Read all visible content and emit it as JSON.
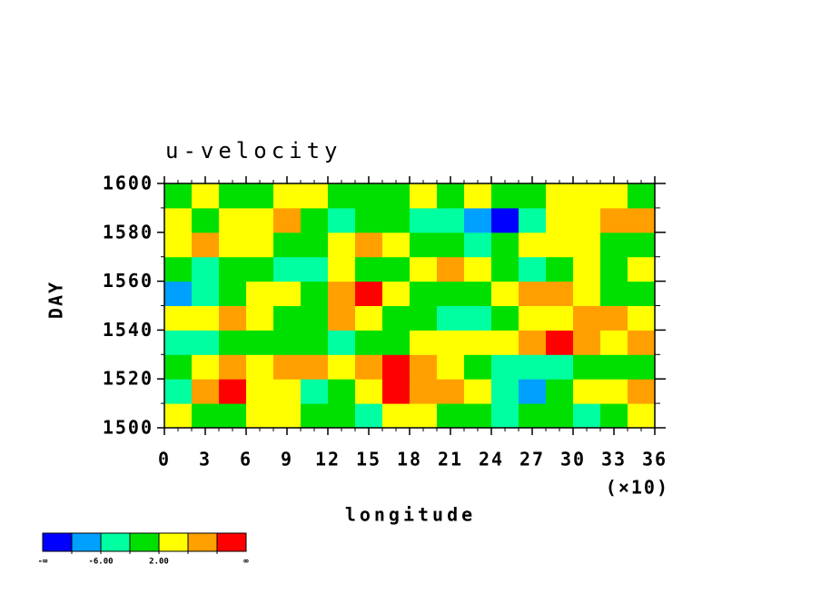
{
  "chart_data": {
    "type": "heatmap",
    "title": "u-velocity",
    "xlabel": "longitude",
    "ylabel": "DAY",
    "xscale_label": "(×10)",
    "xlim": [
      0,
      36
    ],
    "xticks": [
      0,
      3,
      6,
      9,
      12,
      15,
      18,
      21,
      24,
      27,
      30,
      33,
      36
    ],
    "ylim": [
      1500,
      1600
    ],
    "yticks": [
      1500,
      1520,
      1540,
      1560,
      1580,
      1600
    ],
    "x": [
      1,
      3,
      5,
      7,
      9,
      11,
      13,
      15,
      17,
      19,
      21,
      23,
      25,
      27,
      29,
      31,
      33,
      35
    ],
    "y": [
      1505,
      1515,
      1525,
      1535,
      1545,
      1555,
      1565,
      1575,
      1585,
      1595
    ],
    "z": [
      [
        3,
        -2,
        0,
        2,
        5,
        1,
        -1,
        -3,
        2,
        4,
        1,
        0,
        -4,
        -2,
        1,
        -3,
        0,
        2
      ],
      [
        -4,
        6,
        10,
        3,
        2,
        -3,
        1,
        4,
        10,
        6,
        8,
        3,
        -5,
        -7,
        -2,
        3,
        5,
        9
      ],
      [
        1,
        3,
        6,
        4,
        7,
        9,
        5,
        8,
        11,
        6,
        2,
        -1,
        -3,
        -6,
        -4,
        0,
        -2,
        1
      ],
      [
        -3,
        -6,
        -2,
        0,
        1,
        -1,
        -4,
        -2,
        0,
        2,
        4,
        3,
        5,
        7,
        11,
        9,
        4,
        8
      ],
      [
        2,
        5,
        8,
        3,
        0,
        -2,
        7,
        4,
        1,
        -1,
        -4,
        -3,
        0,
        2,
        5,
        9,
        6,
        3
      ],
      [
        -7,
        -3,
        1,
        4,
        2,
        0,
        6,
        10,
        3,
        1,
        -1,
        0,
        5,
        8,
        6,
        3,
        1,
        -2
      ],
      [
        -2,
        -4,
        -1,
        0,
        -6,
        -3,
        2,
        0,
        -1,
        3,
        6,
        4,
        1,
        -3,
        0,
        2,
        -1,
        3
      ],
      [
        4,
        6,
        2,
        3,
        -1,
        0,
        5,
        8,
        4,
        1,
        0,
        -3,
        -1,
        3,
        5,
        2,
        -2,
        1
      ],
      [
        2,
        -1,
        3,
        5,
        7,
        1,
        -3,
        0,
        -2,
        -4,
        -5,
        -7,
        -11,
        -3,
        2,
        5,
        9,
        6
      ],
      [
        1,
        3,
        0,
        -1,
        4,
        2,
        1,
        -2,
        0,
        3,
        1,
        2,
        0,
        -1,
        2,
        4,
        3,
        1
      ]
    ],
    "colorbar": {
      "colors": [
        "#0000ff",
        "#00a0ff",
        "#00ffa0",
        "#00e000",
        "#ffff00",
        "#ffa000",
        "#ff0000"
      ],
      "levels": [
        -10,
        {
          "value": -6,
          "label": "-6.00"
        },
        -2,
        {
          "value": 2,
          "label": "2.00"
        },
        6,
        10
      ],
      "low_label": "-∞",
      "high_label": "∞"
    }
  }
}
